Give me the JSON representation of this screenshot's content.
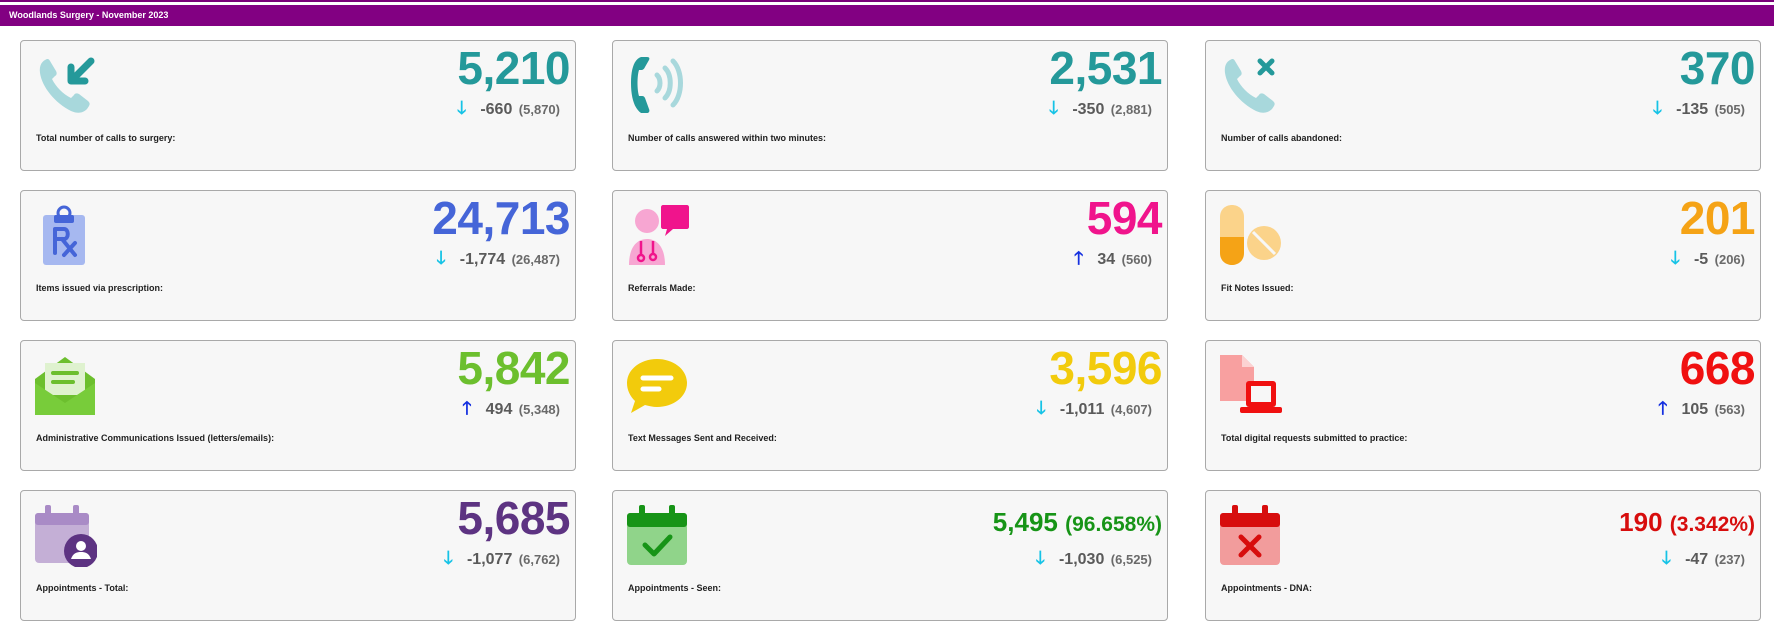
{
  "header": {
    "title": "Woodlands Surgery - November 2023"
  },
  "colors": {
    "header_bg": "#820082",
    "teal": "#24999a",
    "blue": "#4565d8",
    "pink": "#f0148c",
    "orange": "#f5a316",
    "green": "#6cbf2e",
    "yellow": "#f2cb0c",
    "red": "#f01010",
    "purple": "#5d3382",
    "dark_green": "#179417",
    "dark_red": "#d70d0d",
    "arrow_down": "#16c3e6",
    "arrow_up": "#1530e0"
  },
  "cards": [
    {
      "label": "Total number of calls to surgery:",
      "value": "5,210",
      "change": "-660",
      "previous": "(5,870)",
      "direction": "down",
      "icon": "incoming-call-icon"
    },
    {
      "label": "Number of calls answered within two minutes:",
      "value": "2,531",
      "change": "-350",
      "previous": "(2,881)",
      "direction": "down",
      "icon": "ringing-phone-icon"
    },
    {
      "label": "Number of calls abandoned:",
      "value": "370",
      "change": "-135",
      "previous": "(505)",
      "direction": "down",
      "icon": "missed-call-icon"
    },
    {
      "label": "Items issued via prescription:",
      "value": "24,713",
      "change": "-1,774",
      "previous": "(26,487)",
      "direction": "down",
      "icon": "prescription-clipboard-icon"
    },
    {
      "label": "Referrals Made:",
      "value": "594",
      "change": "34",
      "previous": "(560)",
      "direction": "up",
      "icon": "doctor-speech-icon"
    },
    {
      "label": "Fit Notes Issued:",
      "value": "201",
      "change": "-5",
      "previous": "(206)",
      "direction": "down",
      "icon": "pills-icon"
    },
    {
      "label": "Administrative Communications Issued (letters/emails):",
      "value": "5,842",
      "change": "494",
      "previous": "(5,348)",
      "direction": "up",
      "icon": "open-envelope-icon"
    },
    {
      "label": "Text Messages Sent and Received:",
      "value": "3,596",
      "change": "-1,011",
      "previous": "(4,607)",
      "direction": "down",
      "icon": "chat-bubble-icon"
    },
    {
      "label": "Total digital requests submitted to practice:",
      "value": "668",
      "change": "105",
      "previous": "(563)",
      "direction": "up",
      "icon": "document-laptop-icon"
    },
    {
      "label": "Appointments - Total:",
      "value": "5,685",
      "change": "-1,077",
      "previous": "(6,762)",
      "direction": "down",
      "icon": "calendar-user-icon"
    },
    {
      "label": "Appointments - Seen:",
      "value": "5,495",
      "percent": "(96.658%)",
      "change": "-1,030",
      "previous": "(6,525)",
      "direction": "down",
      "icon": "calendar-check-icon"
    },
    {
      "label": "Appointments - DNA:",
      "value": "190",
      "percent": "(3.342%)",
      "change": "-47",
      "previous": "(237)",
      "direction": "down",
      "icon": "calendar-cross-icon"
    }
  ],
  "arrows": {
    "down": "🡓",
    "up": "🡑"
  }
}
